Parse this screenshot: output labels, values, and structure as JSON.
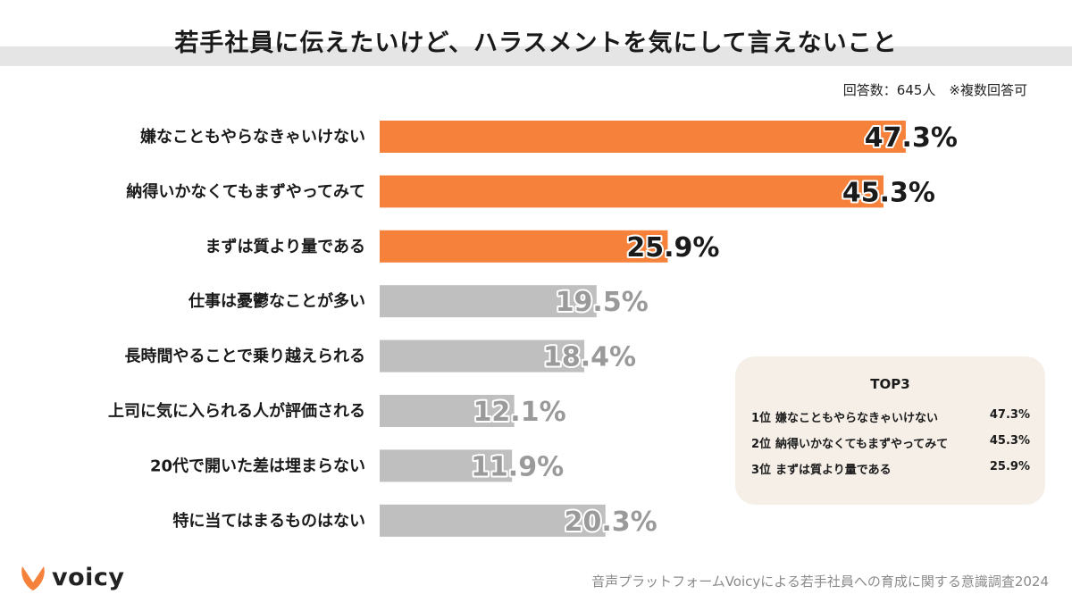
{
  "title": "若手社員に伝えたいけど、ハラスメントを気にして言えないこと",
  "respondents_note": "回答数：645人　※複数回答可",
  "colors": {
    "highlight": "#f5813a",
    "neutral": "#bfbfbf"
  },
  "chart_data": {
    "type": "bar",
    "orientation": "horizontal",
    "categories": [
      "嫌なこともやらなきゃいけない",
      "納得いかなくてもまずやってみて",
      "まずは質より量である",
      "仕事は憂鬱なことが多い",
      "長時間やることで乗り越えられる",
      "上司に気に入られる人が評価される",
      "20代で開いた差は埋まらない",
      "特に当てはまるものはない"
    ],
    "values": [
      47.3,
      45.3,
      25.9,
      19.5,
      18.4,
      12.1,
      11.9,
      20.3
    ],
    "value_labels": [
      "47.3%",
      "45.3%",
      "25.9%",
      "19.5%",
      "18.4%",
      "12.1%",
      "11.9%",
      "20.3%"
    ],
    "highlighted": [
      true,
      true,
      true,
      false,
      false,
      false,
      false,
      false
    ],
    "unit": "%",
    "xlim": [
      0,
      100
    ]
  },
  "top3": {
    "title": "TOP3",
    "rows": [
      {
        "rank": "1位",
        "item": "嫌なこともやらなきゃいけない",
        "pct": "47.3%"
      },
      {
        "rank": "2位",
        "item": "納得いかなくてもまずやってみて",
        "pct": "45.3%"
      },
      {
        "rank": "3位",
        "item": "まずは質より量である",
        "pct": "25.9%"
      }
    ]
  },
  "logo_text": "voicy",
  "footer": "音声プラットフォームVoicyによる若手社員への育成に関する意識調査2024"
}
